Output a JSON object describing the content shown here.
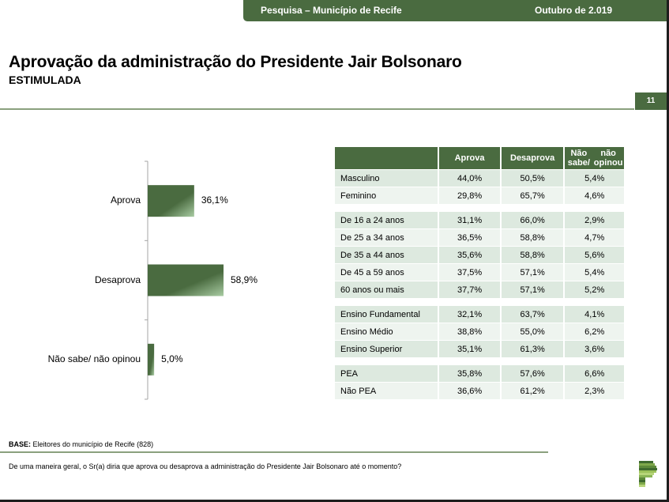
{
  "header": {
    "survey": "Pesquisa – Município de Recife",
    "date": "Outubro de 2.019",
    "title": "Aprovação da administração do Presidente Jair Bolsonaro",
    "subtitle": "ESTIMULADA",
    "page_number": "11"
  },
  "colors": {
    "brand_green": "#4a6b40",
    "row_dark": "#dde9df",
    "row_light": "#eef4ef",
    "rule": "#8aa07e"
  },
  "chart_data": {
    "type": "bar",
    "orientation": "horizontal",
    "categories": [
      "Aprova",
      "Desaprova",
      "Não sabe/ não opinou"
    ],
    "values": [
      36.1,
      58.9,
      5.0
    ],
    "value_labels": [
      "36,1%",
      "58,9%",
      "5,0%"
    ],
    "title": "",
    "xlabel": "",
    "ylabel": "",
    "xlim": [
      0,
      100
    ],
    "grid": false,
    "legend": "none"
  },
  "table": {
    "columns": [
      "",
      "Aprova",
      "Desaprova",
      "Não sabe/ não opinou"
    ],
    "column_lines": [
      [
        ""
      ],
      [
        "Aprova"
      ],
      [
        "Desaprova"
      ],
      [
        "Não sabe/",
        "não opinou"
      ]
    ],
    "groups": [
      {
        "rows": [
          {
            "label": "Masculino",
            "aprova": "44,0%",
            "desaprova": "50,5%",
            "ns": "5,4%"
          },
          {
            "label": "Feminino",
            "aprova": "29,8%",
            "desaprova": "65,7%",
            "ns": "4,6%"
          }
        ]
      },
      {
        "rows": [
          {
            "label": "De 16 a 24 anos",
            "aprova": "31,1%",
            "desaprova": "66,0%",
            "ns": "2,9%"
          },
          {
            "label": "De 25 a 34 anos",
            "aprova": "36,5%",
            "desaprova": "58,8%",
            "ns": "4,7%"
          },
          {
            "label": "De 35 a 44 anos",
            "aprova": "35,6%",
            "desaprova": "58,8%",
            "ns": "5,6%"
          },
          {
            "label": "De 45 a 59 anos",
            "aprova": "37,5%",
            "desaprova": "57,1%",
            "ns": "5,4%"
          },
          {
            "label": "60 anos ou mais",
            "aprova": "37,7%",
            "desaprova": "57,1%",
            "ns": "5,2%"
          }
        ]
      },
      {
        "rows": [
          {
            "label": "Ensino Fundamental",
            "aprova": "32,1%",
            "desaprova": "63,7%",
            "ns": "4,1%"
          },
          {
            "label": "Ensino Médio",
            "aprova": "38,8%",
            "desaprova": "55,0%",
            "ns": "6,2%"
          },
          {
            "label": "Ensino Superior",
            "aprova": "35,1%",
            "desaprova": "61,3%",
            "ns": "3,6%"
          }
        ]
      },
      {
        "rows": [
          {
            "label": " PEA",
            "aprova": "35,8%",
            "desaprova": "57,6%",
            "ns": "6,6%"
          },
          {
            "label": " Não PEA",
            "aprova": "36,6%",
            "desaprova": "61,2%",
            "ns": "2,3%"
          }
        ]
      }
    ]
  },
  "footer": {
    "base_label": "BASE:",
    "base_text": " Eleitores do município de Recife (828)",
    "question": "De uma maneira geral, o Sr(a) diria que aprova ou desaprova a administração do Presidente Jair Bolsonaro até o momento?",
    "logo_icon": "stacked-bars-p-logo-icon"
  }
}
